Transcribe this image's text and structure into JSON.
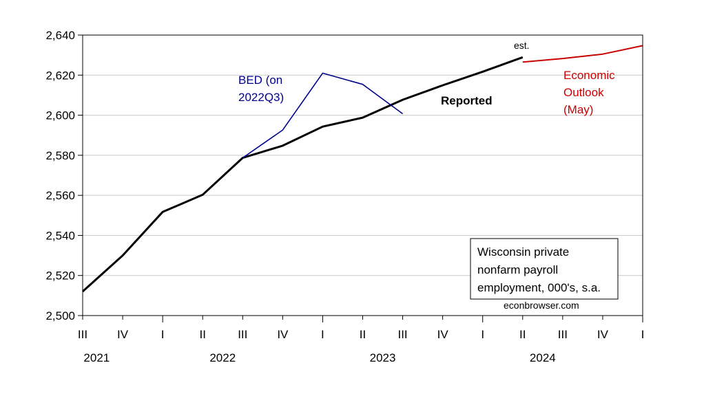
{
  "chart_data": {
    "type": "line",
    "title": "",
    "xlabel": "",
    "ylabel": "",
    "ylim": [
      2500,
      2640
    ],
    "yticks": [
      2500,
      2520,
      2540,
      2560,
      2580,
      2600,
      2620,
      2640
    ],
    "ytick_labels": [
      "2,500",
      "2,520",
      "2,540",
      "2,560",
      "2,580",
      "2,600",
      "2,620",
      "2,640"
    ],
    "grid": "horizontal",
    "quarter_labels": [
      "III",
      "IV",
      "I",
      "II",
      "III",
      "IV",
      "I",
      "II",
      "III",
      "IV",
      "I",
      "II",
      "III",
      "IV",
      "I"
    ],
    "year_labels": [
      "2021",
      "2022",
      "2023",
      "2024"
    ],
    "series": [
      {
        "name": "Reported",
        "color": "#000000",
        "x": [
          "2021Q3",
          "2021Q4",
          "2022Q1",
          "2022Q2",
          "2022Q3",
          "2022Q4",
          "2023Q1",
          "2023Q2",
          "2023Q3",
          "2023Q4",
          "2024Q1",
          "2024Q2"
        ],
        "values": [
          2512,
          2530,
          2551.7,
          2560.3,
          2578.7,
          2584.8,
          2594.3,
          2598.8,
          2607.7,
          2614.9,
          2621.7,
          2628.9
        ]
      },
      {
        "name": "BED (on 2022Q3)",
        "color": "#00008b",
        "x": [
          "2022Q3",
          "2022Q4",
          "2023Q1",
          "2023Q2",
          "2023Q3"
        ],
        "values": [
          2578.7,
          2592.6,
          2621.0,
          2615.4,
          2600.7
        ]
      },
      {
        "name": "Economic Outlook (May)",
        "color": "#cc0000",
        "x": [
          "2024Q2",
          "2024Q3",
          "2024Q4",
          "2025Q1"
        ],
        "values": [
          2626.5,
          2628.3,
          2630.5,
          2634.7
        ]
      }
    ],
    "annotations": {
      "bed": [
        "BED (on",
        "2022Q3)"
      ],
      "reported": "Reported",
      "est": "est.",
      "outlook": [
        "Economic",
        "Outlook",
        "(May)"
      ]
    },
    "legend_box": [
      "Wisconsin private",
      "nonfarm payroll",
      "employment, 000's, s.a."
    ],
    "source": "econbrowser.com"
  }
}
